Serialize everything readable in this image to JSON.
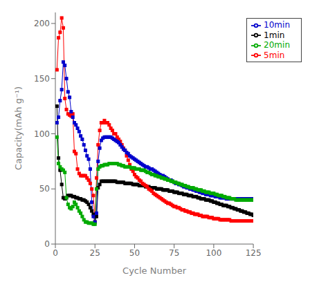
{
  "chart_data": {
    "type": "line",
    "xlabel": "Cycle Number",
    "ylabel": "Capacity(mAh g⁻¹)",
    "x": [
      1,
      2,
      3,
      4,
      5,
      6,
      7,
      8,
      9,
      10,
      11,
      12,
      13,
      14,
      15,
      16,
      17,
      18,
      19,
      20,
      21,
      22,
      23,
      24,
      25,
      26,
      27,
      28,
      29,
      30,
      31,
      32,
      33,
      34,
      35,
      36,
      37,
      38,
      39,
      40,
      41,
      42,
      43,
      44,
      45,
      46,
      47,
      48,
      49,
      50,
      51,
      52,
      53,
      54,
      55,
      56,
      57,
      58,
      59,
      60,
      61,
      62,
      63,
      64,
      65,
      66,
      67,
      68,
      69,
      70,
      71,
      72,
      73,
      74,
      75,
      76,
      77,
      78,
      79,
      80,
      81,
      82,
      83,
      84,
      85,
      86,
      87,
      88,
      89,
      90,
      91,
      92,
      93,
      94,
      95,
      96,
      97,
      98,
      99,
      100,
      101,
      102,
      103,
      104,
      105,
      106,
      107,
      108,
      109,
      110,
      111,
      112,
      113,
      114,
      115,
      116,
      117,
      118,
      119,
      120,
      121,
      122,
      123,
      124,
      125
    ],
    "series": [
      {
        "name": "1min",
        "color": "#000000",
        "marker": "square",
        "values": [
          125,
          78,
          67,
          54,
          42,
          41,
          42,
          44,
          44,
          44,
          43,
          43,
          42,
          42,
          41,
          41,
          40,
          40,
          39,
          38,
          36,
          33,
          30,
          27,
          20,
          25,
          51,
          54,
          57,
          57,
          57,
          57,
          57,
          57,
          57,
          57,
          57,
          57,
          56,
          56,
          56,
          56,
          56,
          55,
          55,
          55,
          55,
          55,
          54,
          54,
          54,
          54,
          53,
          53,
          53,
          53,
          52,
          52,
          52,
          51,
          51,
          51,
          51,
          50,
          50,
          50,
          50,
          49,
          49,
          49,
          49,
          48,
          48,
          48,
          47,
          47,
          47,
          46,
          46,
          46,
          45,
          45,
          45,
          44,
          44,
          44,
          43,
          43,
          43,
          42,
          42,
          41,
          41,
          41,
          40,
          40,
          40,
          39,
          39,
          38,
          38,
          37,
          37,
          36,
          36,
          35,
          35,
          35,
          34,
          34,
          33,
          33,
          32,
          32,
          31,
          31,
          30,
          30,
          29,
          29,
          28,
          28,
          27,
          27,
          26
        ]
      },
      {
        "name": "5min",
        "color": "#ff0000",
        "marker": "square",
        "values": [
          158,
          187,
          192,
          205,
          196,
          132,
          122,
          118,
          117,
          116,
          118,
          84,
          82,
          68,
          64,
          62,
          62,
          62,
          62,
          60,
          58,
          55,
          50,
          44,
          20,
          60,
          90,
          103,
          110,
          110,
          112,
          110,
          110,
          108,
          105,
          103,
          100,
          100,
          97,
          95,
          93,
          90,
          87,
          85,
          80,
          76,
          72,
          68,
          66,
          63,
          61,
          60,
          58,
          57,
          55,
          54,
          53,
          52,
          50,
          49,
          48,
          46,
          45,
          44,
          43,
          42,
          41,
          40,
          39,
          38,
          37,
          37,
          36,
          35,
          34,
          34,
          33,
          33,
          32,
          31,
          31,
          30,
          30,
          29,
          29,
          28,
          28,
          27,
          27,
          27,
          26,
          26,
          25,
          25,
          25,
          25,
          24,
          24,
          24,
          23,
          23,
          23,
          23,
          22,
          22,
          22,
          22,
          22,
          22,
          22,
          21,
          21,
          21,
          21,
          21,
          21,
          21,
          21,
          21,
          21,
          21,
          21,
          21,
          21,
          21
        ]
      },
      {
        "name": "10min",
        "color": "#0000cc",
        "marker": "square",
        "values": [
          110,
          115,
          130,
          140,
          165,
          162,
          150,
          138,
          133,
          120,
          115,
          110,
          108,
          105,
          102,
          98,
          95,
          90,
          85,
          80,
          77,
          68,
          38,
          25,
          20,
          28,
          75,
          87,
          94,
          96,
          97,
          97,
          97,
          97,
          97,
          96,
          95,
          94,
          93,
          92,
          90,
          88,
          86,
          85,
          83,
          82,
          80,
          79,
          78,
          77,
          76,
          75,
          74,
          73,
          72,
          71,
          70,
          70,
          69,
          68,
          68,
          67,
          66,
          65,
          64,
          63,
          62,
          62,
          61,
          60,
          59,
          58,
          58,
          57,
          56,
          55,
          55,
          54,
          54,
          53,
          52,
          52,
          51,
          51,
          50,
          50,
          49,
          49,
          48,
          48,
          47,
          47,
          46,
          46,
          45,
          45,
          45,
          44,
          44,
          44,
          43,
          43,
          43,
          42,
          42,
          42,
          42,
          41,
          41,
          41,
          41,
          41,
          41,
          41,
          41,
          41,
          41,
          41,
          41,
          41,
          41,
          41,
          41,
          41,
          41
        ]
      },
      {
        "name": "20min",
        "color": "#00aa00",
        "marker": "square",
        "values": [
          97,
          73,
          70,
          68,
          67,
          65,
          42,
          36,
          33,
          32,
          34,
          38,
          36,
          33,
          30,
          28,
          25,
          22,
          20,
          20,
          19,
          19,
          19,
          18,
          18,
          50,
          68,
          70,
          71,
          71,
          72,
          72,
          72,
          73,
          73,
          73,
          73,
          73,
          73,
          72,
          72,
          71,
          71,
          70,
          70,
          70,
          70,
          69,
          69,
          69,
          68,
          68,
          68,
          67,
          67,
          67,
          66,
          65,
          65,
          64,
          63,
          63,
          62,
          62,
          61,
          61,
          60,
          60,
          59,
          59,
          58,
          58,
          57,
          57,
          56,
          56,
          55,
          55,
          54,
          54,
          53,
          53,
          52,
          52,
          51,
          51,
          51,
          50,
          50,
          49,
          49,
          49,
          48,
          48,
          47,
          47,
          47,
          46,
          46,
          46,
          45,
          45,
          44,
          44,
          44,
          43,
          43,
          42,
          42,
          42,
          41,
          41,
          41,
          40,
          40,
          40,
          40,
          40,
          40,
          40,
          40,
          40,
          40,
          40,
          40
        ]
      }
    ],
    "xlim": [
      0,
      125
    ],
    "ylim": [
      0,
      210
    ],
    "xticks": [
      0,
      25,
      50,
      75,
      100,
      125
    ],
    "yticks": [
      0,
      50,
      100,
      150,
      200
    ],
    "legend": "upper right",
    "grid": false
  }
}
